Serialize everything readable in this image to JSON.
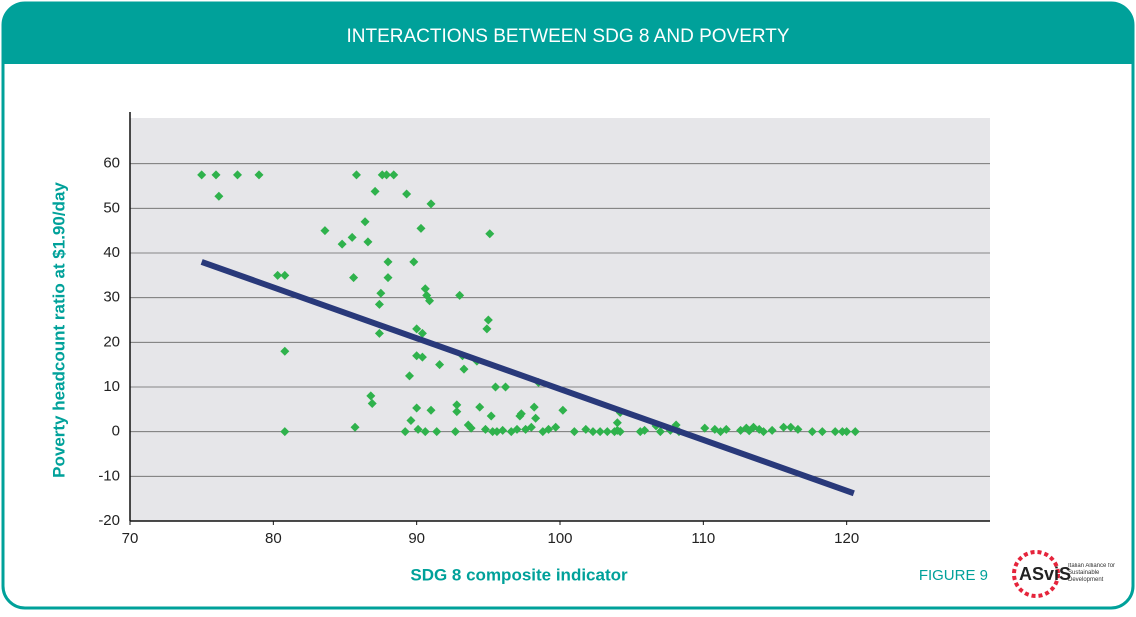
{
  "chart_data": {
    "type": "scatter",
    "title": "INTERACTIONS BETWEEN SDG 8 AND POVERTY",
    "x_label": "SDG 8 composite indicator",
    "y_label": "Poverty headcount ratio at $1.90/day",
    "figure_label": "FIGURE 9",
    "logo": "ASviS",
    "logo_tagline": "Italian Alliance for Sustainable Development",
    "xlim": [
      70,
      130
    ],
    "ylim": [
      -20,
      70
    ],
    "xticks": [
      70,
      80,
      90,
      100,
      110,
      120
    ],
    "yticks": [
      -20,
      -10,
      0,
      10,
      20,
      30,
      40,
      50,
      60
    ],
    "grid": true,
    "color": "#2fb24c",
    "x": [
      75,
      76,
      76.2,
      77.5,
      79,
      80.3,
      80.8,
      80.8,
      80.8,
      83.6,
      84.8,
      85.5,
      85.6,
      85.8,
      85.7,
      86.4,
      86.6,
      86.8,
      86.9,
      87.1,
      87.4,
      87.4,
      87.5,
      87.6,
      87.9,
      88,
      88,
      88.4,
      89.2,
      89.3,
      89.5,
      89.6,
      89.8,
      90,
      90,
      90,
      90.1,
      90.3,
      90.4,
      90.4,
      90.6,
      90.6,
      90.7,
      90.9,
      91,
      91,
      91.4,
      91.6,
      92.7,
      92.8,
      92.8,
      93,
      93.2,
      93.3,
      93.6,
      93.8,
      94.2,
      94.4,
      94.8,
      94.9,
      95,
      95.1,
      95.2,
      95.3,
      95.5,
      95.6,
      96,
      96.2,
      96.6,
      97,
      97.2,
      97.3,
      97.6,
      98,
      98.2,
      98.3,
      98.5,
      98.8,
      99.2,
      99.7,
      100.2,
      101,
      101.8,
      102.3,
      102.8,
      103.3,
      103.8,
      104,
      104,
      104.2,
      104.2,
      105.6,
      105.9,
      106.7,
      107,
      107.7,
      108.1,
      108.3,
      110.1,
      110.8,
      111.2,
      111.6,
      112.6,
      113,
      113.2,
      113.5,
      113.9,
      114.2,
      114.8,
      115.6,
      116.1,
      116.6,
      117.6,
      118.3,
      119.2,
      119.7,
      120,
      120.6
    ],
    "y": [
      57.5,
      57.5,
      52.7,
      57.5,
      57.5,
      35,
      35,
      18,
      0,
      45,
      42,
      43.5,
      34.5,
      57.5,
      1,
      47,
      42.5,
      8,
      6.3,
      53.8,
      22,
      28.5,
      31,
      57.5,
      57.5,
      38,
      34.5,
      57.5,
      0,
      53.2,
      12.5,
      2.5,
      38,
      5.3,
      23,
      17,
      0.5,
      45.5,
      22,
      16.7,
      32,
      0,
      30.5,
      29.3,
      51,
      4.8,
      0,
      15,
      0,
      6,
      4.5,
      30.5,
      17,
      14,
      1.5,
      0.8,
      15.8,
      5.5,
      0.5,
      23,
      25,
      44.3,
      3.5,
      0,
      10,
      0,
      0.3,
      10,
      0,
      0.5,
      3.5,
      4,
      0.5,
      1,
      5.5,
      3,
      11,
      0,
      0.5,
      1,
      4.8,
      0,
      0.5,
      0,
      0,
      0,
      0,
      2,
      0.3,
      0,
      4.3,
      0,
      0.3,
      1.3,
      0,
      0.3,
      1.5,
      0,
      0.8,
      0.5,
      0,
      0.5,
      0.3,
      0.8,
      0.2,
      1,
      0.5,
      0,
      0.3,
      1,
      1,
      0.5,
      0,
      0,
      0,
      0,
      0,
      0
    ],
    "trend": {
      "x": [
        75,
        120.5
      ],
      "y": [
        38,
        -13.8
      ],
      "color": "#29397a"
    }
  }
}
